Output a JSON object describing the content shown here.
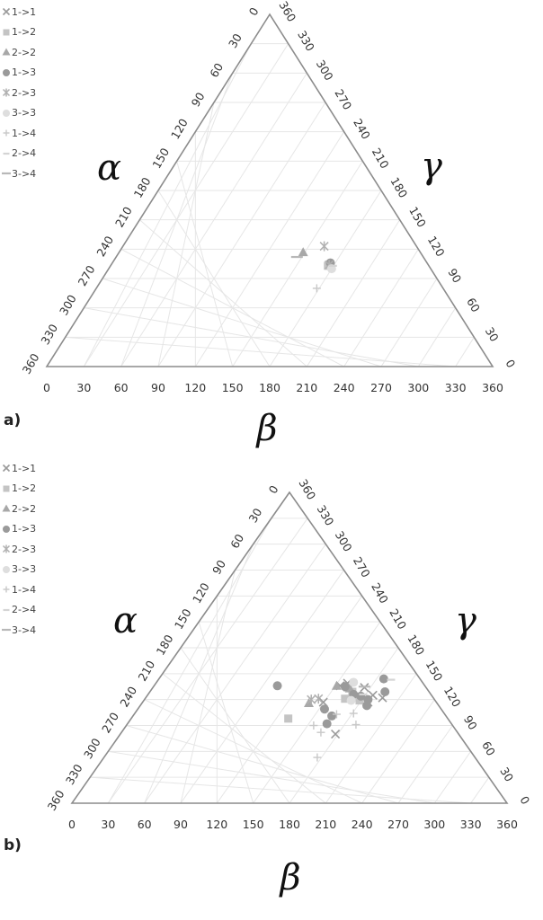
{
  "chart_data": [
    {
      "type": "scatter",
      "subtype": "ternary",
      "panel_label": "a)",
      "axis_labels": {
        "left": "α",
        "right": "γ",
        "bottom": "β"
      },
      "axis_range": [
        0,
        360
      ],
      "tick_values": [
        "0",
        "30",
        "60",
        "90",
        "120",
        "150",
        "180",
        "210",
        "240",
        "270",
        "300",
        "330",
        "360"
      ],
      "grid": true,
      "legend_position": "top-left",
      "series": [
        {
          "name": "1->1",
          "marker": "x",
          "points": []
        },
        {
          "name": "1->2",
          "marker": "square",
          "points": [
            [
              227,
              103
            ]
          ]
        },
        {
          "name": "2->2",
          "marker": "triangle",
          "points": [
            [
              207,
              117
            ]
          ]
        },
        {
          "name": "1->3",
          "marker": "circle",
          "points": [
            [
              229,
              106
            ]
          ]
        },
        {
          "name": "2->3",
          "marker": "asterisk",
          "points": [
            [
              224,
              123
            ],
            [
              228,
              104
            ]
          ]
        },
        {
          "name": "3->3",
          "marker": "circle-light",
          "points": [
            [
              230,
              100
            ]
          ]
        },
        {
          "name": "1->4",
          "marker": "plus",
          "points": [
            [
              218,
              80
            ]
          ]
        },
        {
          "name": "2->4",
          "marker": "dash",
          "points": [
            [
              231,
              103
            ]
          ]
        },
        {
          "name": "3->4",
          "marker": "dash-long",
          "points": [
            [
              202,
              112
            ]
          ]
        }
      ]
    },
    {
      "type": "scatter",
      "subtype": "ternary",
      "panel_label": "b)",
      "axis_labels": {
        "left": "α",
        "right": "γ",
        "bottom": "β"
      },
      "axis_range": [
        0,
        360
      ],
      "tick_values": [
        "0",
        "30",
        "60",
        "90",
        "120",
        "150",
        "180",
        "210",
        "240",
        "270",
        "300",
        "330",
        "360"
      ],
      "grid": true,
      "legend_position": "top-left",
      "series": [
        {
          "name": "1->1",
          "marker": "x",
          "points": [
            [
              228,
              139
            ],
            [
              222,
              136
            ],
            [
              242,
              134
            ],
            [
              249,
              125
            ],
            [
              257,
              122
            ],
            [
              208,
              117
            ],
            [
              218,
              80
            ],
            [
              245,
              117
            ]
          ]
        },
        {
          "name": "1->2",
          "marker": "square",
          "points": [
            [
              179,
              98
            ],
            [
              228,
              134
            ],
            [
              232,
              129
            ],
            [
              226,
              121
            ],
            [
              238,
              119
            ]
          ]
        },
        {
          "name": "2->2",
          "marker": "triangle",
          "points": [
            [
              219,
              136
            ],
            [
              196,
              116
            ],
            [
              230,
              133
            ]
          ]
        },
        {
          "name": "1->3",
          "marker": "circle",
          "points": [
            [
              170,
              136
            ],
            [
              226,
              135
            ],
            [
              233,
              126
            ],
            [
              239,
              124
            ],
            [
              258,
              144
            ],
            [
              245,
              120
            ],
            [
              244,
              113
            ],
            [
              259,
              129
            ],
            [
              209,
              109
            ],
            [
              211,
              92
            ],
            [
              215,
              101
            ]
          ]
        },
        {
          "name": "2->3",
          "marker": "asterisk",
          "points": [
            [
              198,
              120
            ],
            [
              204,
              121
            ]
          ]
        },
        {
          "name": "3->3",
          "marker": "circle-light",
          "points": [
            [
              233,
              140
            ],
            [
              231,
              119
            ]
          ]
        },
        {
          "name": "1->4",
          "marker": "plus",
          "points": [
            [
              200,
              90
            ],
            [
              206,
              82
            ],
            [
              235,
              91
            ],
            [
              219,
              103
            ],
            [
              233,
              104
            ],
            [
              203,
              53
            ]
          ]
        },
        {
          "name": "2->4",
          "marker": "dash",
          "points": [
            [
              264,
              143
            ],
            [
              241,
              126
            ]
          ]
        },
        {
          "name": "3->4",
          "marker": "dash-long",
          "points": [
            [
              242,
              135
            ]
          ]
        }
      ]
    }
  ]
}
